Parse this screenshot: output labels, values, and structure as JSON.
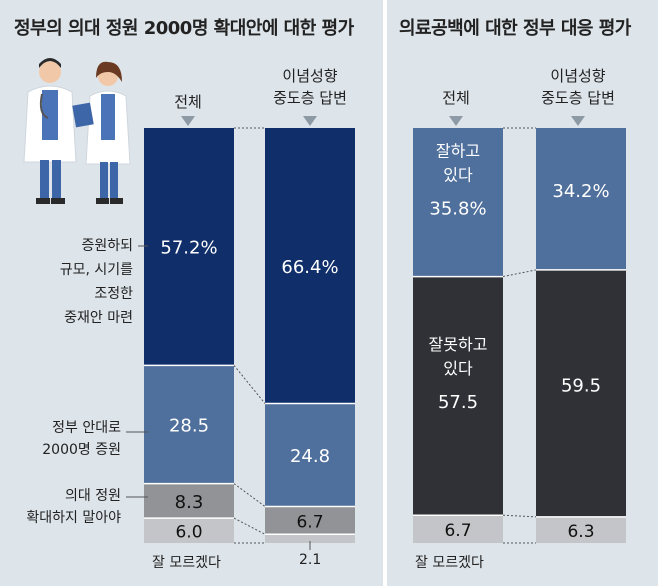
{
  "left": {
    "title": "정부의 의대 정원 2000명 확대안에 대한 평가",
    "col1_label": "전체",
    "col2_label_line1": "이념성향",
    "col2_label_line2": "중도층 답변",
    "row_labels": {
      "adjust_l1": "증원하되",
      "adjust_l2": "규모, 시기를",
      "adjust_l3": "조정한",
      "adjust_l4": "중재안 마련",
      "gov_l1": "정부 안대로",
      "gov_l2": "2000명 증원",
      "no_l1": "의대 정원",
      "no_l2": "확대하지 말아야"
    },
    "footer_dontknow": "잘 모르겠다",
    "footer_val2": "2.1"
  },
  "right": {
    "title": "의료공백에 대한 정부 대응 평가",
    "col1_label": "전체",
    "col2_label_line1": "이념성향",
    "col2_label_line2": "중도층 답변",
    "footer_dontknow": "잘 모르겠다"
  },
  "colors": {
    "navy": "#102e6a",
    "mid_blue": "#4f6f9c",
    "gray": "#929397",
    "light_gray": "#c4c5c8",
    "dark": "#2f3136",
    "right_blue": "#4f6f9c"
  },
  "chart_data": [
    {
      "type": "bar",
      "stacked": true,
      "title": "정부의 의대 정원 2000명 확대안에 대한 평가",
      "categories": [
        "전체",
        "이념성향 중도층 답변"
      ],
      "series": [
        {
          "name": "증원하되 규모, 시기를 조정한 중재안 마련",
          "values": [
            57.2,
            66.4
          ],
          "labels": [
            "57.2%",
            "66.4%"
          ],
          "color": "#102e6a",
          "text_color": "#ffffff"
        },
        {
          "name": "정부 안대로 2000명 증원",
          "values": [
            28.5,
            24.8
          ],
          "labels": [
            "28.5",
            "24.8"
          ],
          "color": "#4f6f9c",
          "text_color": "#ffffff"
        },
        {
          "name": "의대 정원 확대하지 말아야",
          "values": [
            8.3,
            6.7
          ],
          "labels": [
            "8.3",
            "6.7"
          ],
          "color": "#929397",
          "text_color": "#111111"
        },
        {
          "name": "잘 모르겠다",
          "values": [
            6.0,
            2.1
          ],
          "labels": [
            "6.0",
            ""
          ],
          "color": "#c4c5c8",
          "text_color": "#111111"
        }
      ]
    },
    {
      "type": "bar",
      "stacked": true,
      "title": "의료공백에 대한 정부 대응 평가",
      "categories": [
        "전체",
        "이념성향 중도층 답변"
      ],
      "series": [
        {
          "name": "잘하고 있다",
          "values": [
            35.8,
            34.2
          ],
          "labels": [
            "35.8%",
            "34.2%"
          ],
          "color": "#4f6f9c",
          "text_color": "#ffffff",
          "inner_text": "잘하고 있다"
        },
        {
          "name": "잘못하고 있다",
          "values": [
            57.5,
            59.5
          ],
          "labels": [
            "57.5",
            "59.5"
          ],
          "color": "#2f3136",
          "text_color": "#ffffff",
          "inner_text": "잘못하고 있다"
        },
        {
          "name": "잘 모르겠다",
          "values": [
            6.7,
            6.3
          ],
          "labels": [
            "6.7",
            "6.3"
          ],
          "color": "#c4c5c8",
          "text_color": "#111111"
        }
      ]
    }
  ]
}
